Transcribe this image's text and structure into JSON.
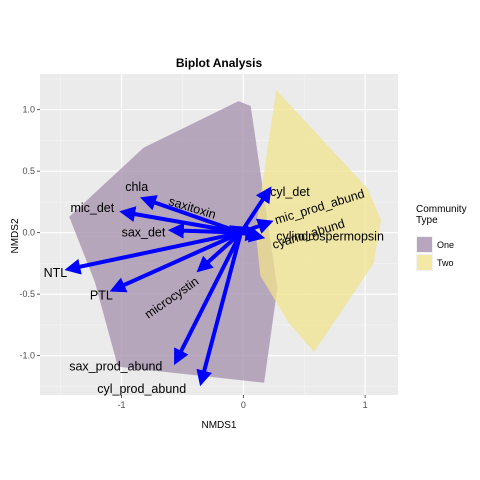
{
  "chart_data": {
    "type": "biplot",
    "title": "Biplot Analysis",
    "xlabel": "NMDS1",
    "ylabel": "NMDS2",
    "xlim": [
      -1.67,
      1.27
    ],
    "ylim": [
      -1.32,
      1.29
    ],
    "x_ticks": [
      {
        "value": -1,
        "label": "-1"
      },
      {
        "value": 0,
        "label": "0"
      },
      {
        "value": 1,
        "label": "1"
      }
    ],
    "y_ticks": [
      {
        "value": 1.0,
        "label": "1.0"
      },
      {
        "value": 0.5,
        "label": "0.5"
      },
      {
        "value": 0.0,
        "label": "0.0"
      },
      {
        "value": -0.5,
        "label": "-0.5"
      },
      {
        "value": -1.0,
        "label": "-1.0"
      }
    ],
    "grid": true,
    "legend": {
      "title_lines": [
        "Community",
        "Type"
      ],
      "placement": "right",
      "entries": [
        {
          "name": "One",
          "color": "#b7a6bd"
        },
        {
          "name": "Two",
          "color": "#f2e9a6"
        }
      ]
    },
    "hulls": [
      {
        "name": "One",
        "color": "#a995b0",
        "opacity": 0.8,
        "points": [
          [
            -1.43,
            0.13
          ],
          [
            -0.82,
            0.69
          ],
          [
            -0.04,
            1.07
          ],
          [
            0.06,
            1.03
          ],
          [
            0.28,
            -0.45
          ],
          [
            0.17,
            -1.22
          ],
          [
            -1.03,
            -1.09
          ],
          [
            -1.22,
            -0.4
          ]
        ]
      },
      {
        "name": "Two",
        "color": "#f0e38d",
        "opacity": 0.75,
        "points": [
          [
            0.27,
            1.16
          ],
          [
            1.02,
            0.36
          ],
          [
            1.13,
            0.1
          ],
          [
            1.07,
            -0.25
          ],
          [
            0.58,
            -0.97
          ],
          [
            0.37,
            -0.73
          ],
          [
            0.14,
            -0.35
          ],
          [
            0.1,
            0.02
          ]
        ]
      }
    ],
    "origin": [
      -0.02,
      0.0
    ],
    "vectors": [
      {
        "label": "chla",
        "x": -0.83,
        "y": 0.28,
        "label_x": -0.97,
        "label_y": 0.37,
        "anchor": "start",
        "rotate": 0
      },
      {
        "label": "mic_det",
        "x": -1.0,
        "y": 0.17,
        "label_x": -1.42,
        "label_y": 0.2,
        "anchor": "start",
        "rotate": 0
      },
      {
        "label": "saxitoxin",
        "x": -0.1,
        "y": 0.05,
        "label_x": -0.62,
        "label_y": 0.26,
        "anchor": "start",
        "rotate": 17
      },
      {
        "label": "sax_det",
        "x": -0.6,
        "y": 0.02,
        "label_x": -1.0,
        "label_y": 0.0,
        "anchor": "start",
        "rotate": 0
      },
      {
        "label": "NTL",
        "x": -1.45,
        "y": -0.3,
        "label_x": -1.64,
        "label_y": -0.33,
        "anchor": "start",
        "rotate": 0
      },
      {
        "label": "PTL",
        "x": -1.08,
        "y": -0.47,
        "label_x": -1.26,
        "label_y": -0.51,
        "anchor": "start",
        "rotate": 0
      },
      {
        "label": "microcystin",
        "x": -0.37,
        "y": -0.31,
        "label_x": -0.78,
        "label_y": -0.67,
        "anchor": "start",
        "rotate": -35
      },
      {
        "label": "sax_prod_abund",
        "x": -0.56,
        "y": -1.06,
        "label_x": -1.43,
        "label_y": -1.09,
        "anchor": "start",
        "rotate": 0
      },
      {
        "label": "cyl_prod_abund",
        "x": -0.35,
        "y": -1.23,
        "label_x": -1.2,
        "label_y": -1.27,
        "anchor": "start",
        "rotate": 0
      },
      {
        "label": "cyl_det",
        "x": 0.22,
        "y": 0.36,
        "label_x": 0.22,
        "label_y": 0.33,
        "anchor": "start",
        "rotate": 0
      },
      {
        "label": "mic_prod_abund",
        "x": 0.23,
        "y": 0.09,
        "label_x": 0.27,
        "label_y": 0.1,
        "anchor": "start",
        "rotate": -17
      },
      {
        "label": "cylindrospermopsin",
        "x": 0.16,
        "y": -0.04,
        "label_x": 0.27,
        "label_y": -0.03,
        "anchor": "start",
        "rotate": 0
      },
      {
        "label": "cyano_abund",
        "x": 0.13,
        "y": -0.02,
        "label_x": 0.25,
        "label_y": -0.1,
        "anchor": "start",
        "rotate": -17
      }
    ]
  }
}
